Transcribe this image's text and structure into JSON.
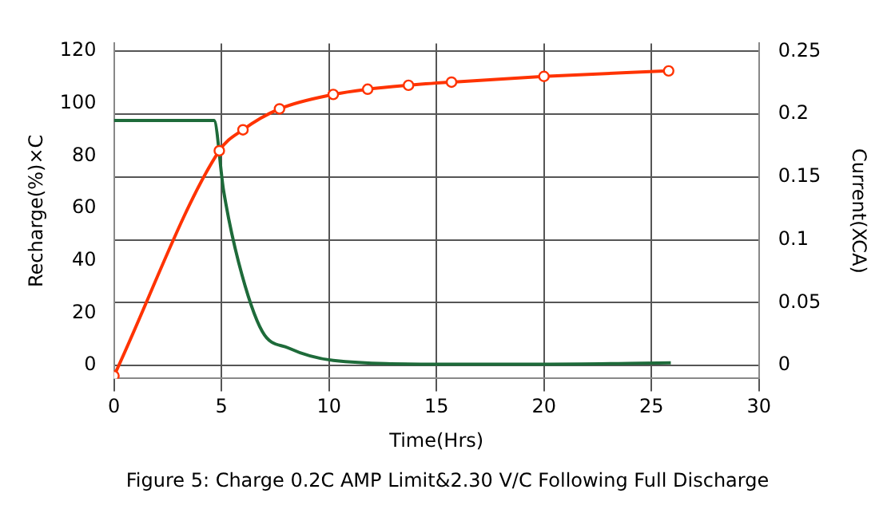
{
  "chart_data": {
    "type": "line",
    "xlabel": "Time(Hrs)",
    "ylabel": "Recharge(%)×C",
    "y2label": "Current(XCA)",
    "annotations": [
      "Figure 5: Charge 0.2C AMP Limit&2.30 V/C Following Full Discharge"
    ],
    "xlim": [
      0,
      30
    ],
    "xticks": [
      0,
      5,
      10,
      15,
      20,
      25,
      30
    ],
    "ylim": [
      -5,
      123
    ],
    "yticks": [
      0,
      20,
      40,
      60,
      80,
      100,
      120
    ],
    "y2lim": [
      -0.0104,
      0.2563
    ],
    "y2ticks": [
      0,
      0.05,
      0.1,
      0.15,
      0.2,
      0.25
    ],
    "grid": true,
    "legend": false,
    "series": [
      {
        "color": "#ff3300",
        "marker": "circle",
        "x": [
          0,
          4.9,
          6,
          7.7,
          10.2,
          11.8,
          13.7,
          15.7,
          20,
          25.8
        ],
        "values": [
          -4,
          82,
          90,
          98,
          103.5,
          105.5,
          107,
          108.2,
          110.4,
          112.5
        ]
      },
      {
        "color": "#1e6b3a",
        "marker": "none",
        "axis": "y2",
        "x": [
          0,
          4.65,
          5.1,
          5.8,
          6.9,
          8.1,
          10.2,
          15.1,
          20,
          25.9
        ],
        "values": [
          0.195,
          0.195,
          0.139,
          0.082,
          0.027,
          0.014,
          0.004,
          0.001,
          0.001,
          0.002
        ]
      }
    ]
  }
}
